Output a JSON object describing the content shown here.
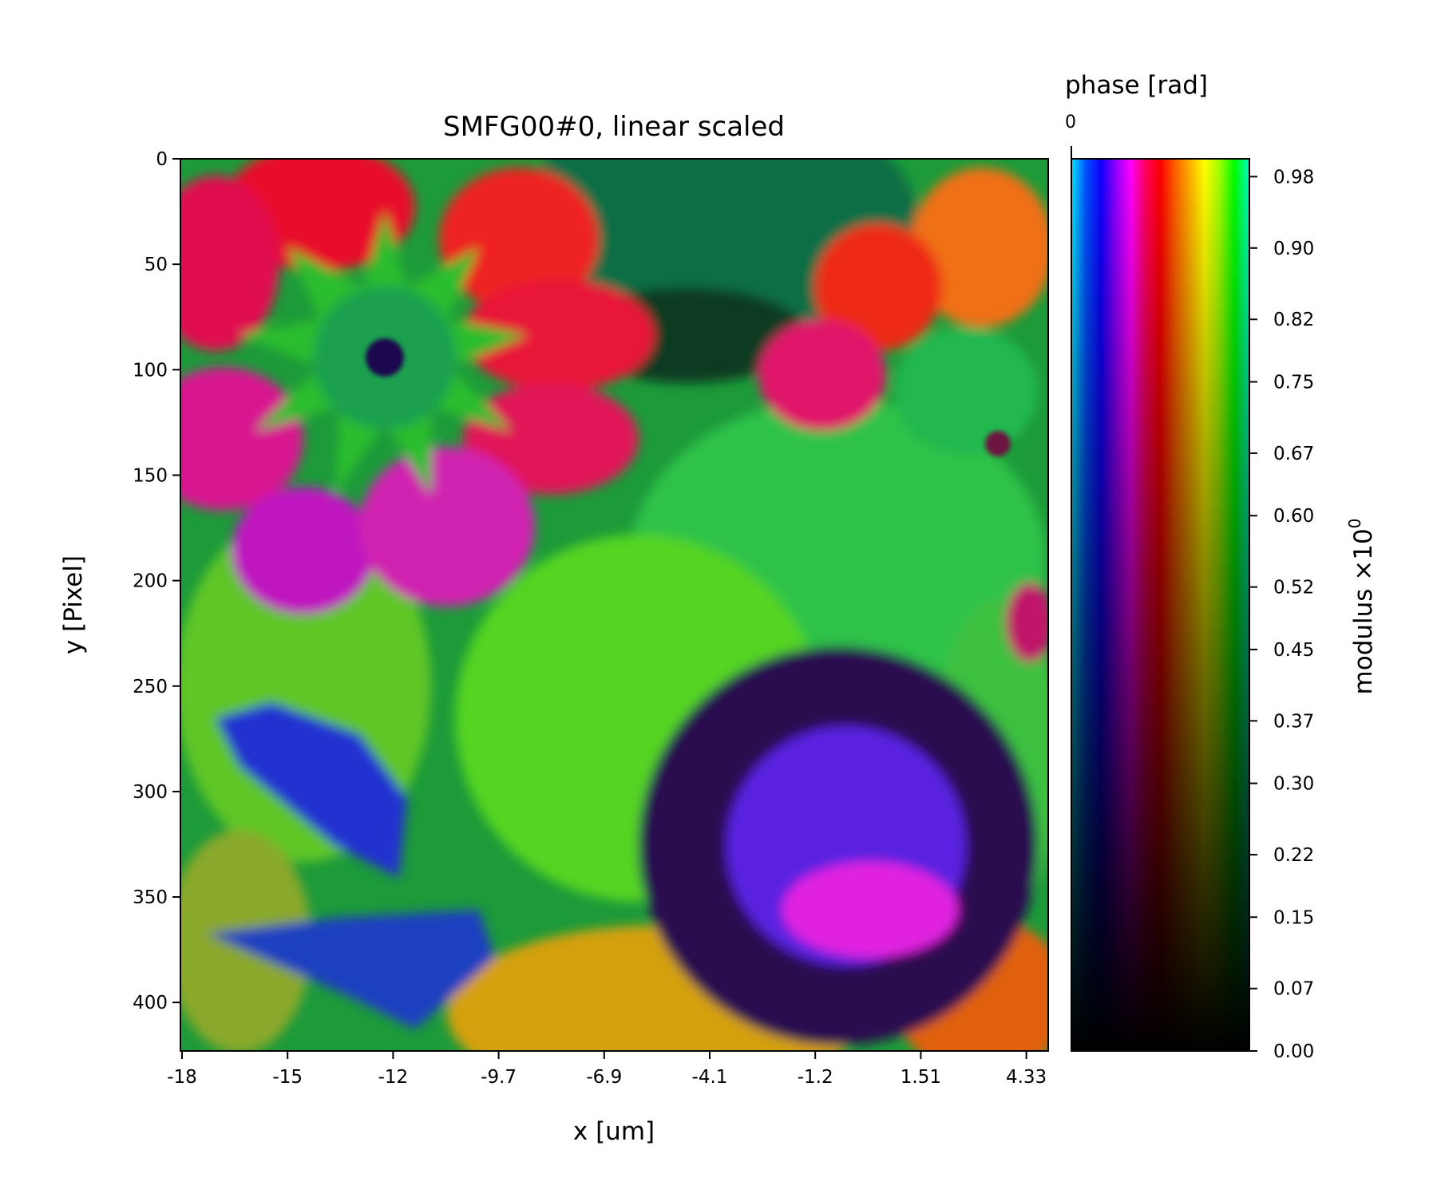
{
  "chart_data": {
    "type": "heatmap",
    "title": "SMFG00#0, linear scaled",
    "xlabel": "x [um]",
    "ylabel": "y [Pixel]",
    "x_ticks": [
      "-18",
      "-15",
      "-12",
      "-9.7",
      "-6.9",
      "-4.1",
      "-1.2",
      "1.51",
      "4.33"
    ],
    "y_ticks": [
      0,
      50,
      100,
      150,
      200,
      250,
      300,
      350,
      400
    ],
    "ylim": [
      423,
      0
    ],
    "colorbar": {
      "phase_label": "phase [rad]",
      "phase_tick": "0",
      "modulus_label": "modulus ×10",
      "modulus_exponent": "0",
      "ticks": [
        "0.00",
        "0.07",
        "0.15",
        "0.22",
        "0.30",
        "0.37",
        "0.45",
        "0.52",
        "0.60",
        "0.67",
        "0.75",
        "0.82",
        "0.90",
        "0.98"
      ],
      "range": [
        0,
        1
      ],
      "hue_colors": [
        "#00e5ff",
        "#0050ff",
        "#1000ff",
        "#9000ff",
        "#ff00ff",
        "#ff0060",
        "#ff0000",
        "#ff6000",
        "#ffb000",
        "#ffff00",
        "#a0ff00",
        "#00ff00",
        "#00ffc0"
      ]
    }
  }
}
